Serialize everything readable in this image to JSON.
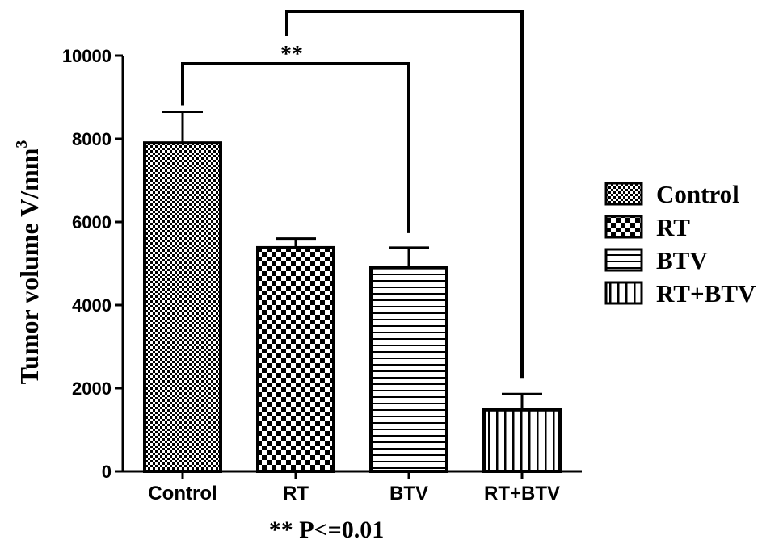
{
  "chart_data": {
    "type": "bar",
    "ylabel": "Tumor volume V/mm",
    "ylabel_superscript": "3",
    "xlabel": "",
    "ylim": [
      0,
      10000
    ],
    "yticks": [
      "0",
      "2000",
      "4000",
      "6000",
      "8000",
      "10000"
    ],
    "categories": [
      "Control",
      "RT",
      "BTV",
      "RT+BTV"
    ],
    "values": [
      7900,
      5380,
      4900,
      1480
    ],
    "error_upper": [
      8650,
      5600,
      5380,
      1860
    ],
    "patterns": [
      "fine-checker",
      "checker",
      "horizontal-lines",
      "vertical-lines"
    ],
    "legend": {
      "placement": "right",
      "entries": [
        "Control",
        "RT",
        "BTV",
        "RT+BTV"
      ]
    },
    "significance": [
      {
        "from": "Control",
        "to": "BTV",
        "label": "**"
      },
      {
        "from": "Control",
        "to": "RT+BTV",
        "label": ""
      }
    ],
    "footnote": "** P<=0.01",
    "colors": {
      "bar_fill": "#ffffff",
      "bar_edge": "#000000",
      "pattern": "#000000"
    }
  }
}
